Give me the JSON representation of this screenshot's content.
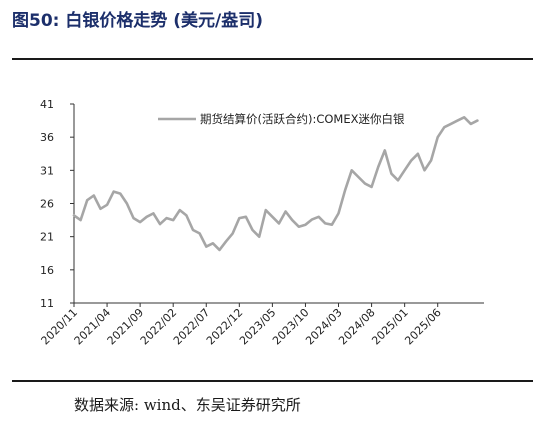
{
  "figure": {
    "title": "图50:  白银价格走势 (美元/盎司)",
    "source": "数据来源: wind、东吴证券研究所"
  },
  "colors": {
    "series": "#a6a6a6",
    "axis": "#333333",
    "title": "#1c2f6b"
  },
  "chart_data": {
    "type": "line",
    "title": "",
    "xlabel": "",
    "ylabel": "",
    "ylim": [
      11,
      41
    ],
    "yticks": [
      11,
      16,
      21,
      26,
      31,
      36,
      41
    ],
    "xlim": [
      "2020-11",
      "2026-01"
    ],
    "xticks": [
      "2020/11",
      "2021/04",
      "2021/09",
      "2022/02",
      "2022/07",
      "2022/12",
      "2023/05",
      "2023/10",
      "2024/03",
      "2024/08",
      "2025/01",
      "2025/06"
    ],
    "legend": "top-right",
    "grid": false,
    "series": [
      {
        "name": "期货结算价(活跃合约):COMEX迷你白银",
        "x": [
          "2020-11",
          "2020-12",
          "2021-01",
          "2021-02",
          "2021-03",
          "2021-04",
          "2021-05",
          "2021-06",
          "2021-07",
          "2021-08",
          "2021-09",
          "2021-10",
          "2021-11",
          "2021-12",
          "2022-01",
          "2022-02",
          "2022-03",
          "2022-04",
          "2022-05",
          "2022-06",
          "2022-07",
          "2022-08",
          "2022-09",
          "2022-10",
          "2022-11",
          "2022-12",
          "2023-01",
          "2023-02",
          "2023-03",
          "2023-04",
          "2023-05",
          "2023-06",
          "2023-07",
          "2023-08",
          "2023-09",
          "2023-10",
          "2023-11",
          "2023-12",
          "2024-01",
          "2024-02",
          "2024-03",
          "2024-04",
          "2024-05",
          "2024-06",
          "2024-07",
          "2024-08",
          "2024-09",
          "2024-10",
          "2024-11",
          "2024-12",
          "2025-01",
          "2025-02",
          "2025-03",
          "2025-04",
          "2025-05",
          "2025-06",
          "2025-07",
          "2025-08",
          "2025-09",
          "2025-10",
          "2025-11",
          "2025-12"
        ],
        "values": [
          24.2,
          23.5,
          26.5,
          27.2,
          25.2,
          25.8,
          27.8,
          27.5,
          26.0,
          23.8,
          23.2,
          24.0,
          24.5,
          22.9,
          23.8,
          23.5,
          25.0,
          24.2,
          22.0,
          21.5,
          19.5,
          20.0,
          19.0,
          20.3,
          21.5,
          23.8,
          24.0,
          22.0,
          21.0,
          25.0,
          24.0,
          23.0,
          24.8,
          23.5,
          22.5,
          22.8,
          23.6,
          24.0,
          23.0,
          22.8,
          24.5,
          28.0,
          31.0,
          30.0,
          29.0,
          28.5,
          31.5,
          34.0,
          30.5,
          29.5,
          31.0,
          32.5,
          33.5,
          31.0,
          32.5,
          36.0,
          37.5,
          38.0,
          38.5,
          39.0,
          38.0,
          38.5
        ]
      }
    ]
  }
}
